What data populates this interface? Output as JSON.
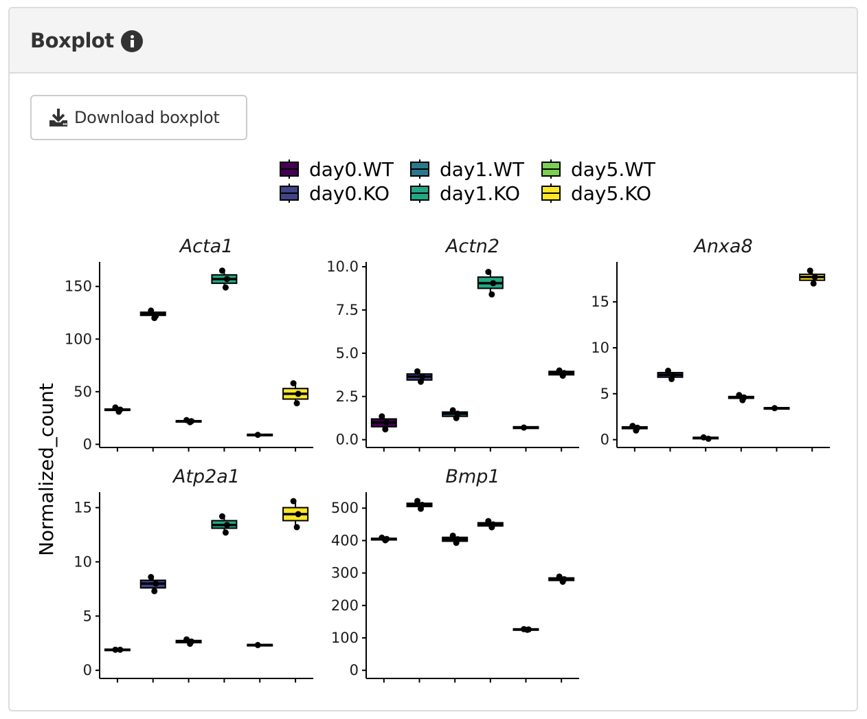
{
  "card": {
    "title": "Boxplot",
    "info_icon": "info-circle-icon"
  },
  "download_button": {
    "label": "Download boxplot",
    "icon": "download-icon"
  },
  "chart_data": {
    "type": "boxplot",
    "ylabel": "Normalized_count",
    "groups": [
      "day0.WT",
      "day0.KO",
      "day1.WT",
      "day1.KO",
      "day5.WT",
      "day5.KO"
    ],
    "legend": {
      "placement": "top",
      "entries": [
        {
          "name": "day0.WT",
          "color": "#440154"
        },
        {
          "name": "day0.KO",
          "color": "#414487"
        },
        {
          "name": "day1.WT",
          "color": "#2A788E"
        },
        {
          "name": "day1.KO",
          "color": "#22A884"
        },
        {
          "name": "day5.WT",
          "color": "#7AD151"
        },
        {
          "name": "day5.KO",
          "color": "#FDE725"
        }
      ]
    },
    "facets": [
      {
        "title": "Acta1",
        "ylim": [
          -3,
          172
        ],
        "yticks": [
          0,
          50,
          100,
          150
        ],
        "ytick_labels": [
          "0",
          "50",
          "100",
          "150"
        ],
        "boxes": [
          {
            "q1": 32.5,
            "median": 33,
            "q3": 33.5,
            "min": 31,
            "max": 35,
            "points": [
              35,
              33,
              31
            ]
          },
          {
            "q1": 122.5,
            "median": 124,
            "q3": 125.5,
            "min": 120,
            "max": 127,
            "points": [
              127,
              122,
              120
            ]
          },
          {
            "q1": 21.5,
            "median": 22,
            "q3": 22.5,
            "min": 21,
            "max": 23,
            "points": [
              23,
              22,
              21
            ]
          },
          {
            "q1": 153,
            "median": 157,
            "q3": 161,
            "min": 149,
            "max": 165,
            "points": [
              165,
              157,
              149
            ]
          },
          {
            "q1": 8.5,
            "median": 9,
            "q3": 9.5,
            "min": 8,
            "max": 10,
            "points": [
              9
            ]
          },
          {
            "q1": 43,
            "median": 48,
            "q3": 53,
            "min": 38,
            "max": 58,
            "points": [
              58,
              48,
              39
            ]
          }
        ]
      },
      {
        "title": "Actn2",
        "ylim": [
          -0.45,
          10.2
        ],
        "yticks": [
          0,
          2.5,
          5,
          7.5,
          10
        ],
        "ytick_labels": [
          "0.0",
          "2.5",
          "5.0",
          "7.5",
          "10.0"
        ],
        "boxes": [
          {
            "q1": 0.75,
            "median": 1.0,
            "q3": 1.2,
            "min": 0.6,
            "max": 1.35,
            "points": [
              1.35,
              1.0,
              0.6
            ]
          },
          {
            "q1": 3.45,
            "median": 3.65,
            "q3": 3.8,
            "min": 3.35,
            "max": 3.95,
            "points": [
              3.95,
              3.65,
              3.35
            ]
          },
          {
            "q1": 1.35,
            "median": 1.5,
            "q3": 1.6,
            "min": 1.25,
            "max": 1.7,
            "points": [
              1.7,
              1.5,
              1.25
            ]
          },
          {
            "q1": 8.75,
            "median": 9.05,
            "q3": 9.4,
            "min": 8.4,
            "max": 9.75,
            "points": [
              9.7,
              9.05,
              8.4
            ]
          },
          {
            "q1": 0.65,
            "median": 0.7,
            "q3": 0.75,
            "min": 0.6,
            "max": 0.8,
            "points": [
              0.7
            ]
          },
          {
            "q1": 3.75,
            "median": 3.85,
            "q3": 3.95,
            "min": 3.7,
            "max": 4.05,
            "points": [
              4.0,
              3.85,
              3.7
            ]
          }
        ]
      },
      {
        "title": "Anxa8",
        "ylim": [
          -0.85,
          19.2
        ],
        "yticks": [
          0,
          5,
          10,
          15
        ],
        "ytick_labels": [
          "0",
          "5",
          "10",
          "15"
        ],
        "boxes": [
          {
            "q1": 1.2,
            "median": 1.3,
            "q3": 1.4,
            "min": 1.0,
            "max": 1.5,
            "points": [
              1.5,
              1.3,
              1.0
            ]
          },
          {
            "q1": 6.8,
            "median": 7.05,
            "q3": 7.3,
            "min": 6.6,
            "max": 7.5,
            "points": [
              7.5,
              7.05,
              6.6
            ]
          },
          {
            "q1": 0.1,
            "median": 0.2,
            "q3": 0.25,
            "min": 0.05,
            "max": 0.3,
            "points": [
              0.25,
              0.1
            ]
          },
          {
            "q1": 4.5,
            "median": 4.6,
            "q3": 4.7,
            "min": 4.3,
            "max": 4.85,
            "points": [
              4.85,
              4.6,
              4.3
            ]
          },
          {
            "q1": 3.38,
            "median": 3.43,
            "q3": 3.48,
            "min": 3.35,
            "max": 3.5,
            "points": [
              3.43
            ]
          },
          {
            "q1": 17.35,
            "median": 17.7,
            "q3": 18.0,
            "min": 17.0,
            "max": 18.4,
            "points": [
              18.4,
              17.7,
              17.0
            ]
          }
        ]
      },
      {
        "title": "Atp2a1",
        "ylim": [
          -0.75,
          16.3
        ],
        "yticks": [
          0,
          5,
          10,
          15
        ],
        "ytick_labels": [
          "0",
          "5",
          "10",
          "15"
        ],
        "boxes": [
          {
            "q1": 1.85,
            "median": 1.9,
            "q3": 1.95,
            "min": 1.8,
            "max": 2.0,
            "points": [
              1.9,
              1.9
            ]
          },
          {
            "q1": 7.6,
            "median": 8.0,
            "q3": 8.3,
            "min": 7.3,
            "max": 8.6,
            "points": [
              8.6,
              8.0,
              7.3
            ]
          },
          {
            "q1": 2.55,
            "median": 2.65,
            "q3": 2.75,
            "min": 2.45,
            "max": 2.85,
            "points": [
              2.85,
              2.65,
              2.45
            ]
          },
          {
            "q1": 13.1,
            "median": 13.4,
            "q3": 13.8,
            "min": 12.7,
            "max": 14.2,
            "points": [
              14.2,
              13.4,
              12.7
            ]
          },
          {
            "q1": 2.28,
            "median": 2.33,
            "q3": 2.38,
            "min": 2.25,
            "max": 2.4,
            "points": [
              2.33
            ]
          },
          {
            "q1": 13.8,
            "median": 14.4,
            "q3": 15.0,
            "min": 13.2,
            "max": 15.6,
            "points": [
              15.6,
              14.4,
              13.2
            ]
          }
        ]
      },
      {
        "title": "Bmp1",
        "ylim": [
          -25,
          545
        ],
        "yticks": [
          0,
          100,
          200,
          300,
          400,
          500
        ],
        "ytick_labels": [
          "0",
          "100",
          "200",
          "300",
          "400",
          "500"
        ],
        "boxes": [
          {
            "q1": 402,
            "median": 405,
            "q3": 407,
            "min": 400,
            "max": 409,
            "points": [
              409,
              405,
              401
            ]
          },
          {
            "q1": 505,
            "median": 510,
            "q3": 515,
            "min": 498,
            "max": 522,
            "points": [
              522,
              510,
              498
            ]
          },
          {
            "q1": 398,
            "median": 404,
            "q3": 410,
            "min": 393,
            "max": 415,
            "points": [
              415,
              404,
              393
            ]
          },
          {
            "q1": 445,
            "median": 450,
            "q3": 455,
            "min": 440,
            "max": 460,
            "points": [
              460,
              450,
              441
            ]
          },
          {
            "q1": 124,
            "median": 126,
            "q3": 128,
            "min": 123,
            "max": 129,
            "points": [
              127,
              126,
              125
            ]
          },
          {
            "q1": 277,
            "median": 281,
            "q3": 285,
            "min": 273,
            "max": 289,
            "points": [
              289,
              281,
              273
            ]
          }
        ]
      }
    ]
  }
}
